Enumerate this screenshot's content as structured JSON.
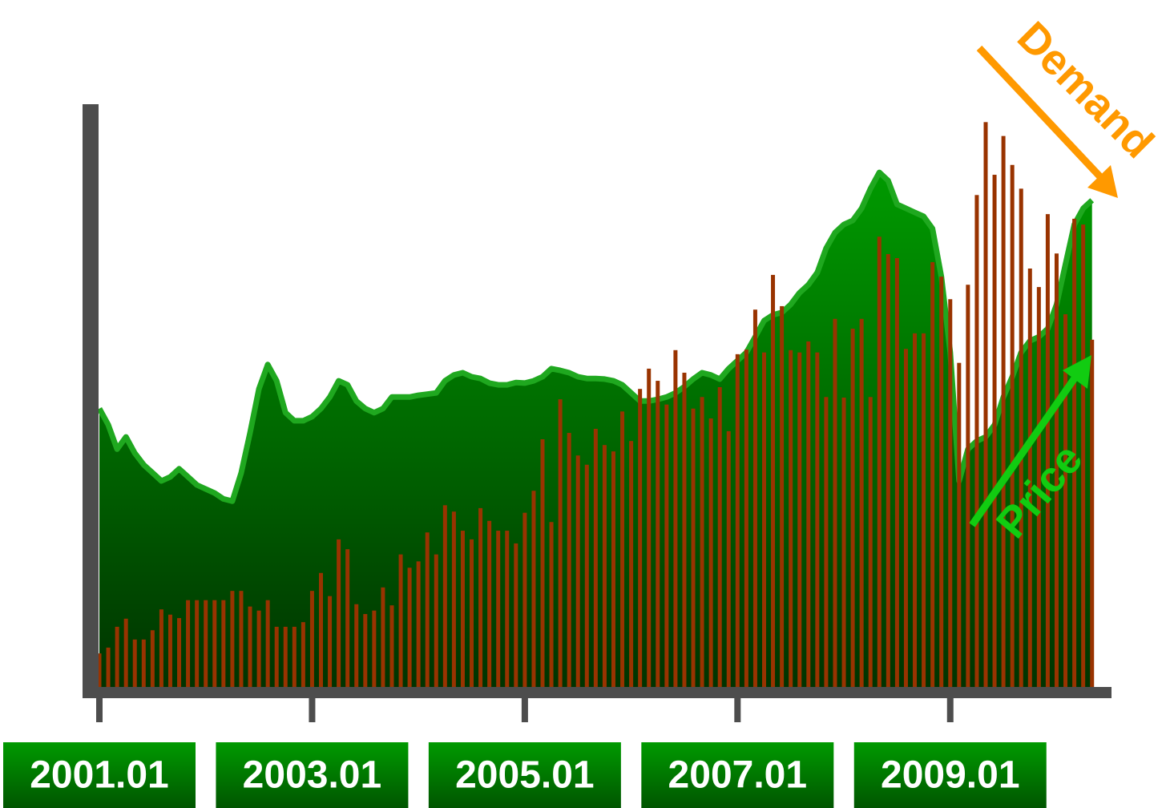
{
  "chart_data": {
    "type": "bar",
    "categories": [
      "2001.01",
      null,
      null,
      null,
      null,
      null,
      null,
      null,
      null,
      null,
      null,
      null,
      null,
      null,
      null,
      null,
      null,
      null,
      null,
      null,
      null,
      null,
      null,
      null,
      "2003.01",
      null,
      null,
      null,
      null,
      null,
      null,
      null,
      null,
      null,
      null,
      null,
      null,
      null,
      null,
      null,
      null,
      null,
      null,
      null,
      null,
      null,
      null,
      null,
      "2005.01",
      null,
      null,
      null,
      null,
      null,
      null,
      null,
      null,
      null,
      null,
      null,
      null,
      null,
      null,
      null,
      null,
      null,
      null,
      null,
      null,
      null,
      null,
      null,
      "2007.01",
      null,
      null,
      null,
      null,
      null,
      null,
      null,
      null,
      null,
      null,
      null,
      null,
      null,
      null,
      null,
      null,
      null,
      null,
      null,
      null,
      null,
      null,
      null,
      "2009.01",
      null,
      null,
      null,
      null,
      null,
      null,
      null,
      null,
      null,
      null,
      null,
      null,
      null,
      null,
      null,
      null
    ],
    "ylim": [
      0,
      100
    ],
    "series": [
      {
        "name": "Price",
        "type": "area",
        "color": "#1fa81f",
        "values": [
          48.1,
          45.3,
          41.1,
          43.2,
          40.4,
          38.4,
          37.0,
          35.6,
          36.3,
          37.7,
          36.3,
          34.9,
          34.2,
          33.5,
          32.5,
          32.1,
          37.0,
          43.9,
          51.5,
          55.7,
          52.9,
          47.4,
          46.0,
          46.0,
          46.7,
          48.1,
          50.1,
          52.9,
          52.2,
          49.4,
          48.1,
          47.4,
          48.1,
          50.1,
          50.1,
          50.1,
          50.4,
          50.6,
          50.8,
          52.9,
          53.9,
          54.3,
          53.6,
          53.3,
          52.5,
          52.2,
          52.2,
          52.6,
          52.5,
          52.9,
          53.6,
          55.0,
          54.7,
          54.3,
          53.6,
          53.3,
          53.3,
          53.2,
          52.9,
          52.2,
          50.8,
          49.4,
          49.4,
          49.7,
          50.1,
          50.8,
          51.9,
          53.2,
          54.3,
          53.9,
          53.2,
          55.0,
          56.4,
          57.8,
          60.5,
          63.3,
          64.3,
          64.7,
          66.1,
          68.1,
          69.5,
          71.6,
          75.8,
          78.5,
          79.9,
          80.6,
          82.7,
          86.1,
          88.9,
          87.5,
          83.4,
          82.7,
          82.0,
          81.3,
          79.2,
          70.9,
          57.8,
          35.6,
          41.1,
          42.5,
          43.2,
          45.3,
          50.1,
          53.6,
          57.8,
          59.8,
          60.5,
          61.9,
          66.1,
          73.0,
          79.9,
          82.7,
          84.1
        ]
      },
      {
        "name": "Demand",
        "type": "bar",
        "color": "#993300",
        "values": [
          5.8,
          6.8,
          10.4,
          11.8,
          8.2,
          8.2,
          9.8,
          13.4,
          12.5,
          11.9,
          15.0,
          15.0,
          15.0,
          15.0,
          15.0,
          16.6,
          16.6,
          13.9,
          13.2,
          15.0,
          10.4,
          10.4,
          10.4,
          11.2,
          16.6,
          19.7,
          15.7,
          25.5,
          23.8,
          14.3,
          12.6,
          13.2,
          17.2,
          14.1,
          22.9,
          20.6,
          21.7,
          26.7,
          22.9,
          31.4,
          30.3,
          27.0,
          25.5,
          30.9,
          28.7,
          27.0,
          27.0,
          24.8,
          30.1,
          33.9,
          42.8,
          28.5,
          49.7,
          43.9,
          40.0,
          38.4,
          44.6,
          41.8,
          40.7,
          47.6,
          42.5,
          51.5,
          55.0,
          52.9,
          48.8,
          58.2,
          54.3,
          48.1,
          50.1,
          46.4,
          51.8,
          44.2,
          57.5,
          58.3,
          65.2,
          57.8,
          71.2,
          65.8,
          58.2,
          57.8,
          59.7,
          57.8,
          50.1,
          63.6,
          50.0,
          61.9,
          63.6,
          50.1,
          77.8,
          74.8,
          74.1,
          58.4,
          61.1,
          61.1,
          73.4,
          70.9,
          67.0,
          56.0,
          69.5,
          85.0,
          97.6,
          88.5,
          95.2,
          90.2,
          86.1,
          72.3,
          69.1,
          81.7,
          74.9,
          64.4,
          80.9,
          79.9,
          60.0
        ]
      }
    ]
  }
}
